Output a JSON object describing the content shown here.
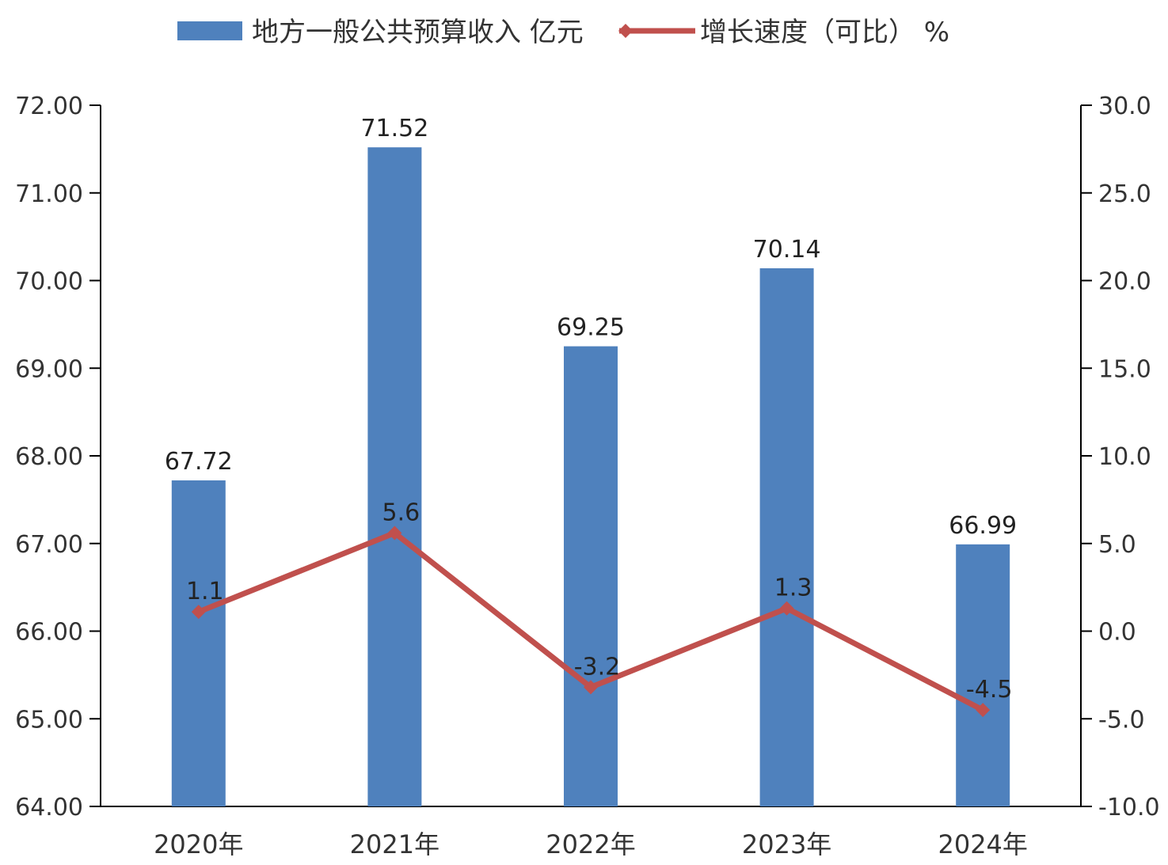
{
  "chart_data": {
    "type": "bar",
    "categories": [
      "2020年",
      "2021年",
      "2022年",
      "2023年",
      "2024年"
    ],
    "series": [
      {
        "name": "地方一般公共预算收入 亿元",
        "type": "bar",
        "axis": "left",
        "values": [
          67.72,
          71.52,
          69.25,
          70.14,
          66.99
        ],
        "labels": [
          "67.72",
          "71.52",
          "69.25",
          "70.14",
          "66.99"
        ],
        "color": "#4f81bd"
      },
      {
        "name": "增长速度（可比） %",
        "type": "line",
        "axis": "right",
        "values": [
          1.1,
          5.6,
          -3.2,
          1.3,
          -4.5
        ],
        "labels": [
          "1.1",
          "5.6",
          "-3.2",
          "1.3",
          "-4.5"
        ],
        "color": "#c0504d"
      }
    ],
    "y_left": {
      "range": [
        64,
        72
      ],
      "ticks": [
        "64.00",
        "65.00",
        "66.00",
        "67.00",
        "68.00",
        "69.00",
        "70.00",
        "71.00",
        "72.00"
      ]
    },
    "y_right": {
      "range": [
        -10,
        30
      ],
      "ticks": [
        "-10.0",
        "-5.0",
        "0.0",
        "5.0",
        "10.0",
        "15.0",
        "20.0",
        "25.0",
        "30.0"
      ]
    },
    "legend_position": "top",
    "grid": false
  }
}
